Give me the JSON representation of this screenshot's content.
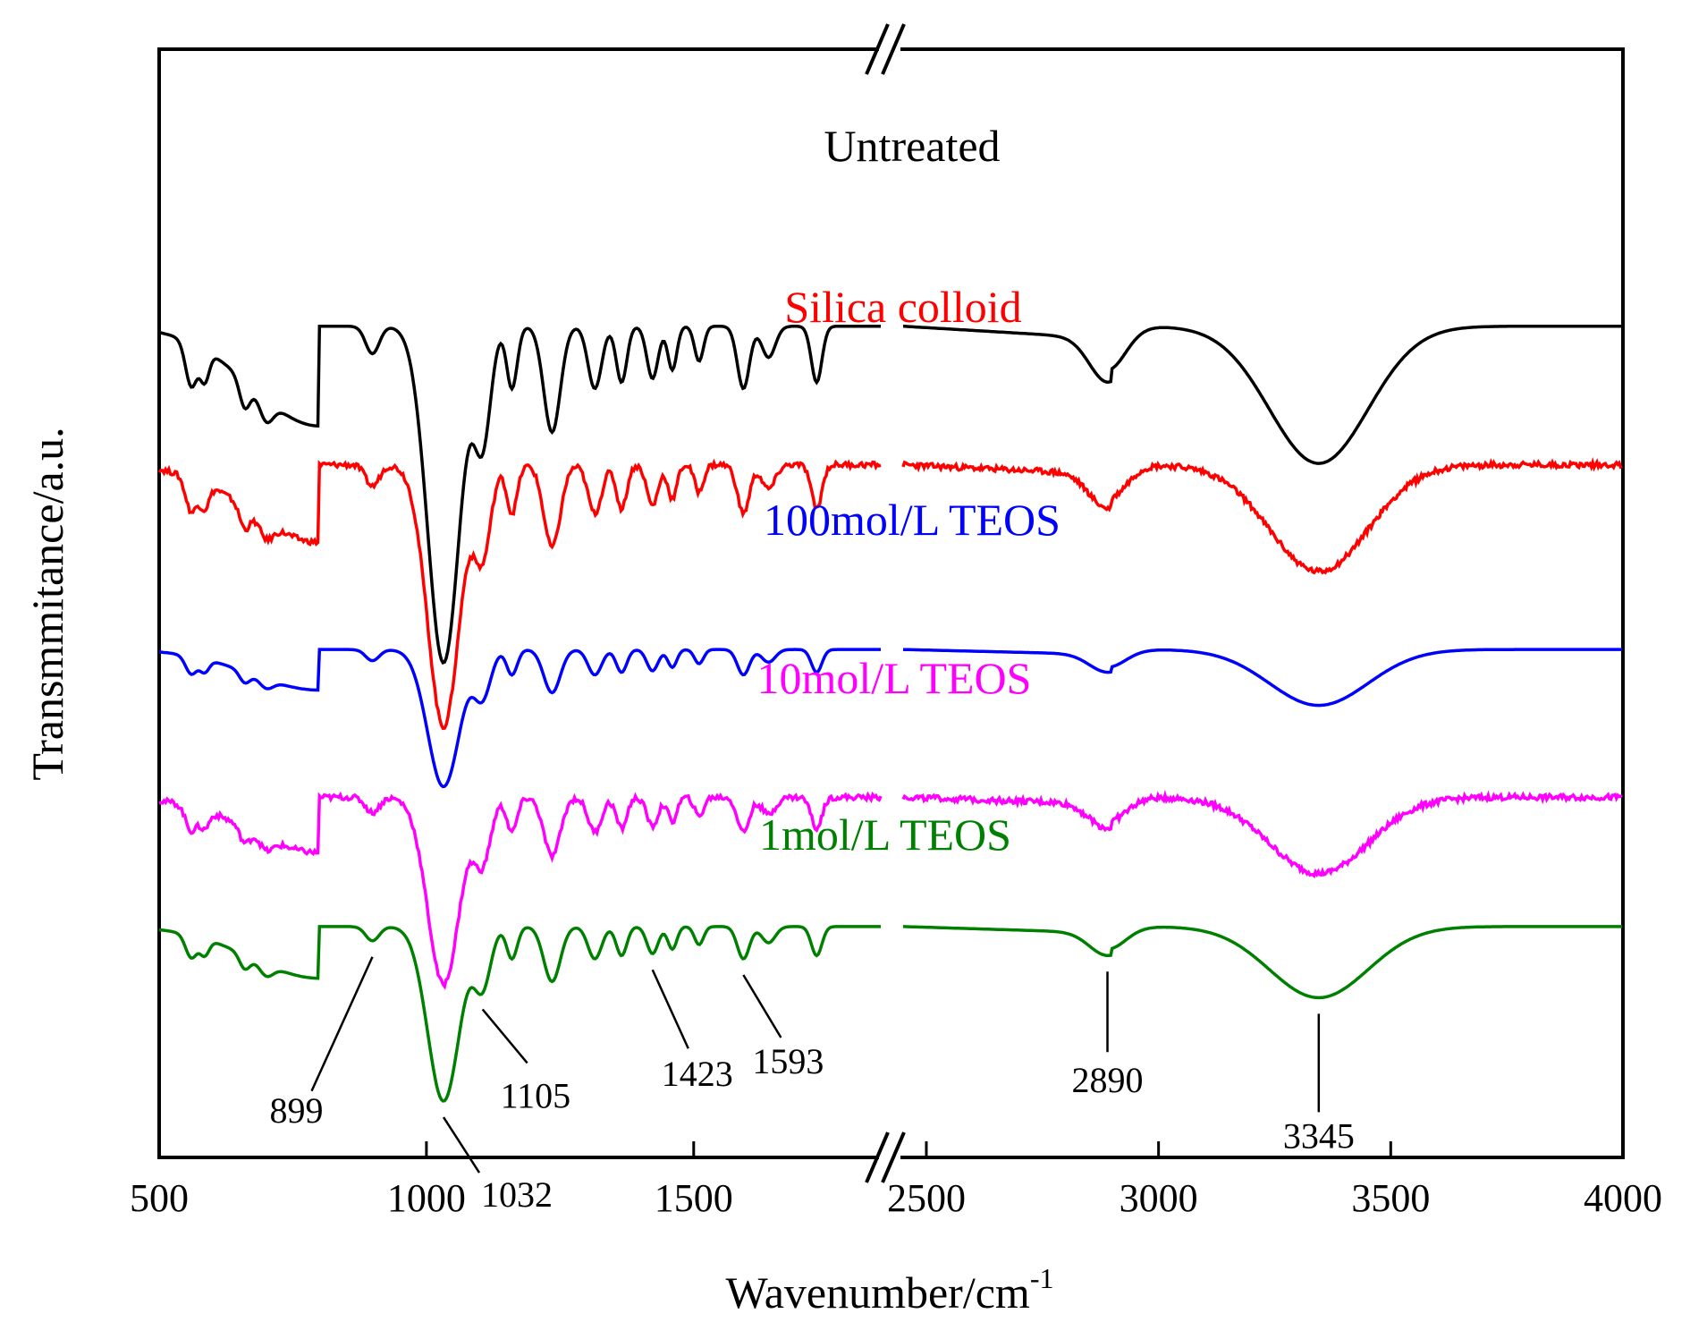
{
  "chart_data": {
    "type": "line",
    "title": "",
    "xlabel": "Wavenumber/cm",
    "xlabel_superscript": "-1",
    "ylabel": "Transmmitance/a.u.",
    "x_segments": [
      {
        "range": [
          500,
          1850
        ],
        "ticks": [
          500,
          1000,
          1500
        ],
        "tick_labels": [
          "500",
          "1000",
          "1500"
        ]
      },
      {
        "range": [
          2450,
          4000
        ],
        "ticks": [
          2500,
          3000,
          3500,
          4000
        ],
        "tick_labels": [
          "2500",
          "3000",
          "3500",
          "4000"
        ]
      }
    ],
    "axis_break": "between 1850 and 2450",
    "series": [
      {
        "name": "Untreated",
        "color": "#000000",
        "offset": 5.5,
        "peak_scale": 1.35,
        "noise": 0
      },
      {
        "name": "Silica colloid",
        "color": "#ff0000",
        "offset": 4.0,
        "peak_scale": 1.05,
        "noise": 0.06
      },
      {
        "name": "100mol/L TEOS",
        "color": "#0000ff",
        "offset": 2.0,
        "peak_scale": 0.55,
        "noise": 0
      },
      {
        "name": "10mol/L TEOS",
        "color": "#ff00ff",
        "offset": 0.4,
        "peak_scale": 0.75,
        "noise": 0.06
      },
      {
        "name": "1mol/L TEOS",
        "color": "#008000",
        "offset": -1.0,
        "peak_scale": 0.7,
        "noise": 0
      }
    ],
    "annotations": [
      {
        "label": "899",
        "x": 899
      },
      {
        "label": "1032",
        "x": 1032
      },
      {
        "label": "1105",
        "x": 1105
      },
      {
        "label": "1423",
        "x": 1423
      },
      {
        "label": "1593",
        "x": 1593
      },
      {
        "label": "2890",
        "x": 2890
      },
      {
        "label": "3345",
        "x": 3345
      }
    ]
  }
}
